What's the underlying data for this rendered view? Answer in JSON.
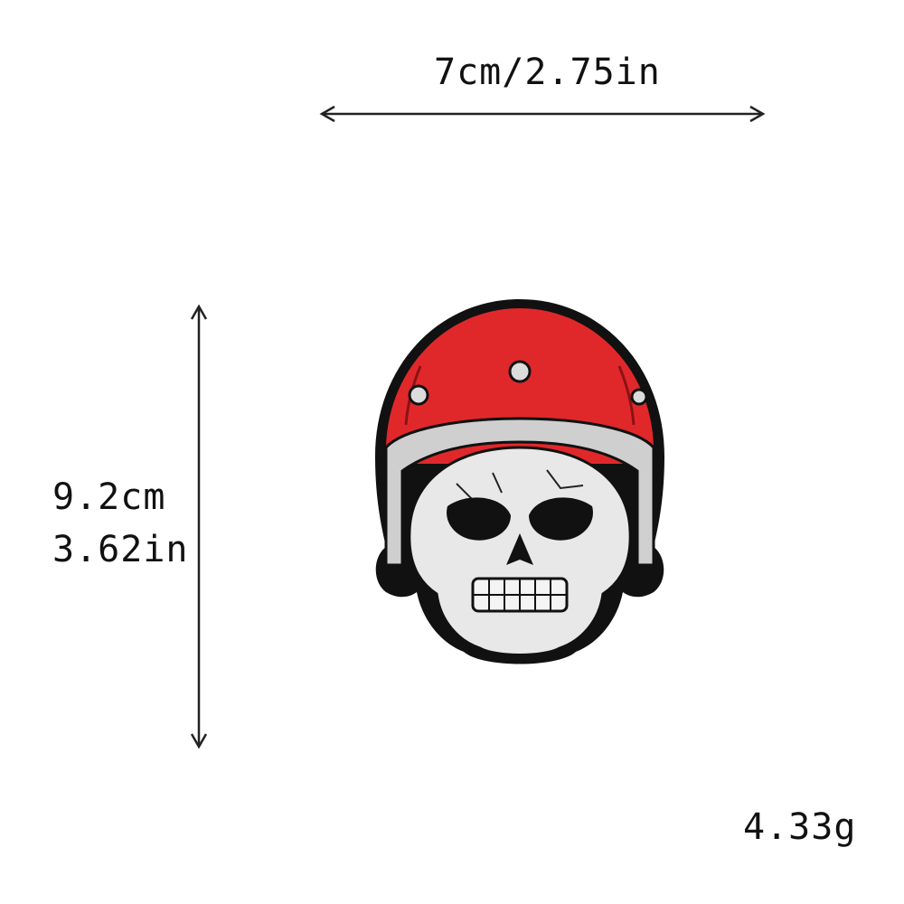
{
  "dimensions": {
    "width_text": "7cm/2.75in",
    "height_cm_text": "9.2cm",
    "height_in_text": "3.62in",
    "weight_text": "4.33g"
  },
  "product": {
    "image_icon": "skull-helmet-patch-icon",
    "colors": {
      "helmet_red": "#e0282b",
      "border_black": "#111111",
      "skull_white": "#e8e8e8",
      "visor_silver": "#cfcfcf"
    }
  },
  "icons": {
    "horizontal_arrow": "double-arrow-horizontal-icon",
    "vertical_arrow": "double-arrow-vertical-icon"
  }
}
